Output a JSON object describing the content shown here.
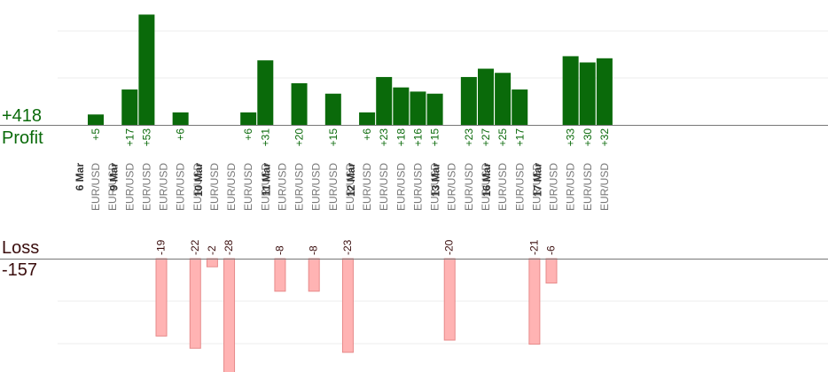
{
  "summary": {
    "profit_total": "+418",
    "profit_label": "Profit",
    "loss_label": "Loss",
    "loss_total": "-157"
  },
  "colors": {
    "profit_bar": "#0a6a0a",
    "loss_bar": "#ffb3b3",
    "profit_text": "#0a6a0a",
    "loss_text": "#3a0d0d",
    "category_text": "#777777"
  },
  "chart_data": {
    "type": "bar",
    "profit_ylim": [
      0,
      60
    ],
    "loss_ylim": [
      -25,
      0
    ],
    "grid": true,
    "dates": [
      "6 Mar",
      "9 Mar",
      "10 Mar",
      "11 Mar",
      "12 Mar",
      "13 Mar",
      "16 Mar",
      "17 Mar"
    ],
    "trades": [
      {
        "pair": "EUR/USD",
        "value": "+5",
        "date": "6 Mar"
      },
      {
        "pair": "EUR/USD",
        "value": ""
      },
      {
        "pair": "EUR/USD",
        "value": "+17",
        "date": "9 Mar"
      },
      {
        "pair": "EUR/USD",
        "value": "+53"
      },
      {
        "pair": "EUR/USD",
        "value": "-19"
      },
      {
        "pair": "EUR/USD",
        "value": "+6"
      },
      {
        "pair": "EUR/USD",
        "value": "-22"
      },
      {
        "pair": "EUR/USD",
        "value": "-2",
        "date": "10 Mar"
      },
      {
        "pair": "EUR/USD",
        "value": "-28"
      },
      {
        "pair": "EUR/USD",
        "value": "+6"
      },
      {
        "pair": "EUR/USD",
        "value": "+31"
      },
      {
        "pair": "EUR/USD",
        "value": "-8",
        "date": "11 Mar"
      },
      {
        "pair": "EUR/USD",
        "value": "+20"
      },
      {
        "pair": "EUR/USD",
        "value": "-8"
      },
      {
        "pair": "EUR/USD",
        "value": "+15"
      },
      {
        "pair": "EUR/USD",
        "value": "-23"
      },
      {
        "pair": "EUR/USD",
        "value": "+6",
        "date": "12 Mar"
      },
      {
        "pair": "EUR/USD",
        "value": "+23"
      },
      {
        "pair": "EUR/USD",
        "value": "+18"
      },
      {
        "pair": "EUR/USD",
        "value": "+16"
      },
      {
        "pair": "EUR/USD",
        "value": "+15"
      },
      {
        "pair": "EUR/USD",
        "value": "-20",
        "date": "13 Mar"
      },
      {
        "pair": "EUR/USD",
        "value": "+23"
      },
      {
        "pair": "EUR/USD",
        "value": "+27"
      },
      {
        "pair": "EUR/USD",
        "value": "+25",
        "date": "16 Mar"
      },
      {
        "pair": "EUR/USD",
        "value": "+17"
      },
      {
        "pair": "EUR/USD",
        "value": "-21"
      },
      {
        "pair": "EUR/USD",
        "value": "-6",
        "date": "17 Mar"
      },
      {
        "pair": "EUR/USD",
        "value": "+33"
      },
      {
        "pair": "EUR/USD",
        "value": "+30"
      },
      {
        "pair": "EUR/USD",
        "value": "+32"
      }
    ]
  }
}
